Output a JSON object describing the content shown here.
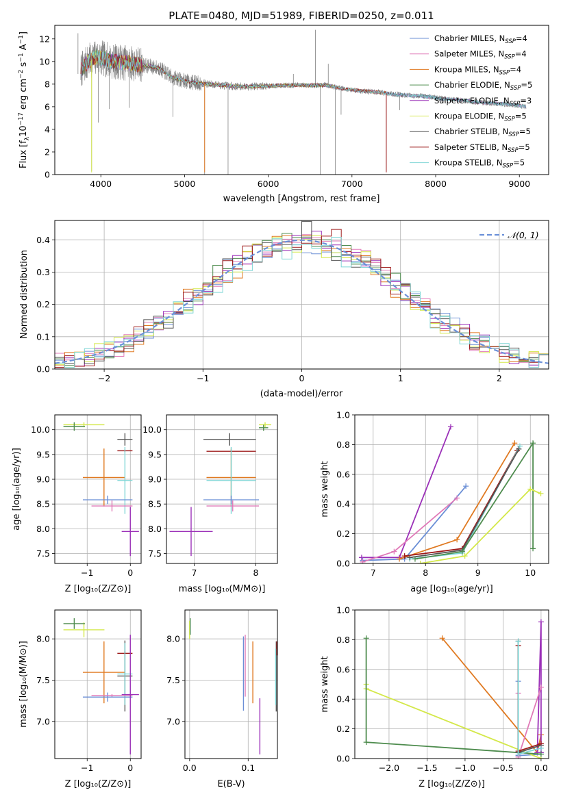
{
  "colors": {
    "chabrier_miles": "#6b8fd6",
    "salpeter_miles": "#e07ab8",
    "kroupa_miles": "#e07a22",
    "chabrier_elodie": "#4e8c4e",
    "salpeter_elodie": "#9b30b8",
    "kroupa_elodie": "#d4e84a",
    "chabrier_stelib": "#555555",
    "salpeter_stelib": "#9e1b1b",
    "kroupa_stelib": "#7fd6d6",
    "gaussian": "#6a8fd8",
    "spectrum": "#808080"
  },
  "chart_data": [
    {
      "id": "spectrum",
      "type": "line",
      "title": "PLATE=0480, MJD=51989, FIBERID=0250, z=0.011",
      "xlabel": "wavelength [Angstrom, rest frame]",
      "ylabel": "Flux [f$_\\lambda$10$^{-17}$ erg cm$^{-2}$ s$^{-1}$ A$^{-1}$]",
      "ylabel_parts": [
        "Flux [",
        "f",
        "λ",
        "10",
        "−17",
        " erg cm",
        "−2",
        " s",
        "−1",
        " A",
        "−1",
        "]"
      ],
      "xlim": [
        3450,
        9350
      ],
      "ylim": [
        0,
        13.2
      ],
      "xticks": [
        4000,
        5000,
        6000,
        7000,
        8000,
        9000
      ],
      "yticks": [
        0,
        2,
        4,
        6,
        8,
        10,
        12
      ],
      "grid": false,
      "legend_position": "top-right",
      "legend": [
        {
          "name": "Chabrier MILES, N",
          "sub": "SSP",
          "tail": "=4",
          "color_key": "chabrier_miles"
        },
        {
          "name": "Salpeter MILES, N",
          "sub": "SSP",
          "tail": "=4",
          "color_key": "salpeter_miles"
        },
        {
          "name": "Kroupa MILES, N",
          "sub": "SSP",
          "tail": "=4",
          "color_key": "kroupa_miles"
        },
        {
          "name": "Chabrier ELODIE, N",
          "sub": "SSP",
          "tail": "=5",
          "color_key": "chabrier_elodie"
        },
        {
          "name": "Salpeter ELODIE, N",
          "sub": "SSP",
          "tail": "=3",
          "color_key": "salpeter_elodie"
        },
        {
          "name": "Kroupa ELODIE, N",
          "sub": "SSP",
          "tail": "=5",
          "color_key": "kroupa_elodie"
        },
        {
          "name": "Chabrier STELIB, N",
          "sub": "SSP",
          "tail": "=5",
          "color_key": "chabrier_stelib"
        },
        {
          "name": "Salpeter STELIB, N",
          "sub": "SSP",
          "tail": "=5",
          "color_key": "salpeter_stelib"
        },
        {
          "name": "Kroupa STELIB, N",
          "sub": "SSP",
          "tail": "=5",
          "color_key": "kroupa_stelib"
        }
      ],
      "continuum": {
        "x": [
          3760,
          3850,
          3950,
          4050,
          4150,
          4300,
          4500,
          4700,
          4850,
          4950,
          5050,
          5300,
          5600,
          5900,
          6200,
          6500,
          6700,
          6900,
          7100,
          7300,
          7500,
          7700,
          7900,
          8100,
          8300,
          8500,
          8700,
          8900,
          9080
        ],
        "y": [
          9.2,
          10.0,
          10.4,
          10.2,
          10.0,
          9.9,
          9.7,
          9.4,
          8.6,
          8.4,
          8.2,
          8.0,
          7.8,
          7.8,
          7.9,
          7.9,
          7.9,
          7.6,
          7.4,
          7.3,
          7.1,
          7.0,
          6.9,
          6.7,
          6.6,
          6.4,
          6.3,
          6.2,
          6.0
        ]
      },
      "spikes": [
        {
          "x": 3727,
          "y": 12.5
        },
        {
          "x": 3890,
          "y": 0.3
        },
        {
          "x": 3970,
          "y": 4.6
        },
        {
          "x": 4102,
          "y": 5.8
        },
        {
          "x": 4340,
          "y": 5.9
        },
        {
          "x": 4861,
          "y": 5.1
        },
        {
          "x": 5240,
          "y": 0.0
        },
        {
          "x": 5520,
          "y": 0.0
        },
        {
          "x": 6300,
          "y": 8.9
        },
        {
          "x": 6563,
          "y": 12.8
        },
        {
          "x": 6620,
          "y": 0.0
        },
        {
          "x": 6717,
          "y": 9.8
        },
        {
          "x": 6800,
          "y": 0.0
        },
        {
          "x": 6870,
          "y": 5.3
        },
        {
          "x": 7410,
          "y": 0.3
        },
        {
          "x": 7570,
          "y": 5.7
        }
      ]
    },
    {
      "id": "residuals",
      "type": "line",
      "xlabel": "(data-model)/error",
      "ylabel": "Normed distribution",
      "xlim": [
        -2.5,
        2.5
      ],
      "ylim": [
        0,
        0.46
      ],
      "xticks": [
        -2,
        -1,
        0,
        1,
        2
      ],
      "yticks": [
        0.0,
        0.1,
        0.2,
        0.3,
        0.4
      ],
      "grid": true,
      "legend_position": "top-right",
      "legend": [
        {
          "name": "𝒩(0, 1)",
          "color_key": "gaussian",
          "dashed": true
        }
      ],
      "gaussian": {
        "mean": 0,
        "sigma": 1
      },
      "bins": {
        "start": -2.5,
        "width": 0.1
      }
    },
    {
      "id": "age_vs_Z",
      "type": "scatter",
      "xlabel": "Z [log₁₀(Z/Z⊙)]",
      "ylabel": "age  [log₁₀(age/yr)]",
      "xlim": [
        -1.75,
        0.25
      ],
      "ylim": [
        7.3,
        10.3
      ],
      "xticks": [
        -1,
        0
      ],
      "yticks": [
        7.5,
        8.0,
        8.5,
        9.0,
        9.5,
        10.0
      ],
      "grid": true,
      "crosses": [
        {
          "color_key": "kroupa_elodie",
          "x": [
            -1.55,
            -0.6
          ],
          "y": [
            10.05,
            10.15
          ]
        },
        {
          "color_key": "chabrier_elodie",
          "x": [
            -1.55,
            -1.05
          ],
          "y": [
            9.98,
            10.15
          ]
        },
        {
          "color_key": "kroupa_miles",
          "x": [
            -1.1,
            -0.12
          ],
          "y": [
            9.62,
            8.45
          ]
        },
        {
          "color_key": "chabrier_stelib",
          "x": [
            -0.3,
            0.05
          ],
          "y": [
            9.68,
            9.93
          ]
        },
        {
          "color_key": "salpeter_stelib",
          "x": [
            -0.3,
            0.05
          ],
          "y": [
            9.6,
            9.55
          ]
        },
        {
          "color_key": "kroupa_stelib",
          "x": [
            -0.3,
            0.05
          ],
          "y": [
            9.65,
            8.3
          ]
        },
        {
          "color_key": "chabrier_miles",
          "x": [
            -1.1,
            0.05
          ],
          "y": [
            8.67,
            8.5
          ]
        },
        {
          "color_key": "salpeter_miles",
          "x": [
            -0.9,
            0.05
          ],
          "y": [
            8.57,
            8.35
          ]
        },
        {
          "color_key": "salpeter_elodie",
          "x": [
            -0.2,
            0.2
          ],
          "y": [
            8.44,
            7.45
          ]
        }
      ]
    },
    {
      "id": "age_vs_mass",
      "type": "scatter",
      "xlabel": "mass [log₁₀(M/M⊙)]",
      "ylabel": "",
      "xlim": [
        6.55,
        8.35
      ],
      "ylim": [
        7.3,
        10.3
      ],
      "xticks": [
        7,
        8
      ],
      "yticks": [
        7.5,
        8.0,
        8.5,
        9.0,
        9.5,
        10.0
      ],
      "grid": true,
      "crosses": [
        {
          "color_key": "kroupa_elodie",
          "x": [
            8.05,
            8.25
          ],
          "y": [
            10.05,
            10.15
          ]
        },
        {
          "color_key": "chabrier_elodie",
          "x": [
            8.05,
            8.2
          ],
          "y": [
            9.98,
            10.1
          ]
        },
        {
          "color_key": "kroupa_miles",
          "x": [
            7.2,
            8.0
          ],
          "y": [
            9.62,
            8.45
          ]
        },
        {
          "color_key": "chabrier_stelib",
          "x": [
            7.15,
            8.0
          ],
          "y": [
            9.68,
            9.93
          ]
        },
        {
          "color_key": "salpeter_stelib",
          "x": [
            7.2,
            8.0
          ],
          "y": [
            9.58,
            9.55
          ]
        },
        {
          "color_key": "kroupa_stelib",
          "x": [
            7.2,
            8.0
          ],
          "y": [
            9.65,
            8.3
          ]
        },
        {
          "color_key": "chabrier_miles",
          "x": [
            7.15,
            8.05
          ],
          "y": [
            8.67,
            8.5
          ]
        },
        {
          "color_key": "salpeter_miles",
          "x": [
            7.2,
            8.05
          ],
          "y": [
            8.57,
            8.35
          ]
        },
        {
          "color_key": "salpeter_elodie",
          "x": [
            6.6,
            7.3
          ],
          "y": [
            8.44,
            7.45
          ]
        }
      ]
    },
    {
      "id": "mass_weight_vs_age",
      "type": "line",
      "xlabel": "age  [log₁₀(age/yr)]",
      "ylabel": "mass weight",
      "xlim": [
        6.65,
        10.35
      ],
      "ylim": [
        0,
        1.0
      ],
      "xticks": [
        7,
        8,
        9,
        10
      ],
      "yticks": [
        0.0,
        0.2,
        0.4,
        0.6,
        0.8,
        1.0
      ],
      "grid": true,
      "series": [
        {
          "color_key": "salpeter_elodie",
          "x": [
            6.78,
            7.5,
            8.48
          ],
          "y": [
            0.04,
            0.04,
            0.92
          ]
        },
        {
          "color_key": "chabrier_miles",
          "x": [
            6.8,
            7.6,
            8.77
          ],
          "y": [
            0.02,
            0.03,
            0.52
          ]
        },
        {
          "color_key": "salpeter_miles",
          "x": [
            6.8,
            7.4,
            8.6
          ],
          "y": [
            0.01,
            0.08,
            0.44
          ]
        },
        {
          "color_key": "kroupa_miles",
          "x": [
            7.5,
            8.6,
            9.7
          ],
          "y": [
            0.03,
            0.16,
            0.81
          ]
        },
        {
          "color_key": "salpeter_stelib",
          "x": [
            7.6,
            8.7,
            9.75
          ],
          "y": [
            0.05,
            0.1,
            0.76
          ]
        },
        {
          "color_key": "kroupa_stelib",
          "x": [
            7.7,
            8.7,
            9.8
          ],
          "y": [
            0.03,
            0.07,
            0.79
          ]
        },
        {
          "color_key": "chabrier_stelib",
          "x": [
            7.7,
            8.7,
            9.78
          ],
          "y": [
            0.04,
            0.09,
            0.77
          ]
        },
        {
          "color_key": "chabrier_elodie",
          "x": [
            7.8,
            8.7,
            10.05,
            10.05
          ],
          "y": [
            0.03,
            0.08,
            0.81,
            0.1
          ]
        },
        {
          "color_key": "kroupa_elodie",
          "x": [
            7.9,
            8.75,
            10.0,
            10.2
          ],
          "y": [
            0.0,
            0.05,
            0.5,
            0.47
          ]
        }
      ]
    },
    {
      "id": "mass_vs_Z",
      "type": "scatter",
      "xlabel": "Z [log₁₀(Z/Z⊙)]",
      "ylabel": "mass [log₁₀(M/M⊙)]",
      "xlim": [
        -1.75,
        0.25
      ],
      "ylim": [
        6.55,
        8.35
      ],
      "xticks": [
        -1,
        0
      ],
      "yticks": [
        7.0,
        7.5,
        8.0
      ],
      "grid": true,
      "crosses": [
        {
          "color_key": "kroupa_elodie",
          "x": [
            -1.55,
            -0.6
          ],
          "y": [
            8.02,
            8.2
          ]
        },
        {
          "color_key": "chabrier_elodie",
          "x": [
            -1.55,
            -1.05
          ],
          "y": [
            8.12,
            8.25
          ]
        },
        {
          "color_key": "kroupa_miles",
          "x": [
            -1.1,
            -0.12
          ],
          "y": [
            7.22,
            7.97
          ]
        },
        {
          "color_key": "chabrier_stelib",
          "x": [
            -0.3,
            0.05
          ],
          "y": [
            7.12,
            7.98
          ]
        },
        {
          "color_key": "salpeter_stelib",
          "x": [
            -0.3,
            0.05
          ],
          "y": [
            7.8,
            7.85
          ]
        },
        {
          "color_key": "kroupa_stelib",
          "x": [
            -0.3,
            0.05
          ],
          "y": [
            7.2,
            7.95
          ]
        },
        {
          "color_key": "chabrier_miles",
          "x": [
            -1.1,
            0.05
          ],
          "y": [
            7.24,
            7.35
          ]
        },
        {
          "color_key": "salpeter_miles",
          "x": [
            -0.9,
            0.05
          ],
          "y": [
            7.33,
            7.3
          ]
        },
        {
          "color_key": "salpeter_elodie",
          "x": [
            -0.2,
            0.2
          ],
          "y": [
            6.6,
            8.05
          ]
        }
      ]
    },
    {
      "id": "mass_vs_ebv",
      "type": "scatter",
      "xlabel": "E(B-V)",
      "ylabel": "",
      "xlim": [
        -0.008,
        0.15
      ],
      "ylim": [
        6.55,
        8.35
      ],
      "xticks": [
        0.0,
        0.1
      ],
      "yticks": [
        7.0,
        7.5,
        8.0
      ],
      "grid": true,
      "vlines": [
        {
          "color_key": "kroupa_elodie",
          "x": 0.0,
          "y": [
            8.0,
            8.22
          ]
        },
        {
          "color_key": "chabrier_elodie",
          "x": 0.001,
          "y": [
            8.05,
            8.25
          ]
        },
        {
          "color_key": "chabrier_miles",
          "x": 0.092,
          "y": [
            7.13,
            8.03
          ]
        },
        {
          "color_key": "salpeter_miles",
          "x": 0.095,
          "y": [
            7.3,
            8.05
          ]
        },
        {
          "color_key": "kroupa_miles",
          "x": 0.108,
          "y": [
            7.22,
            7.97
          ]
        },
        {
          "color_key": "salpeter_elodie",
          "x": 0.12,
          "y": [
            6.6,
            7.28
          ]
        },
        {
          "color_key": "chabrier_stelib",
          "x": 0.148,
          "y": [
            7.12,
            7.97
          ]
        },
        {
          "color_key": "salpeter_stelib",
          "x": 0.149,
          "y": [
            7.8,
            7.97
          ]
        },
        {
          "color_key": "kroupa_stelib",
          "x": 0.147,
          "y": [
            7.2,
            7.88
          ]
        }
      ]
    },
    {
      "id": "mass_weight_vs_Z",
      "type": "line",
      "xlabel": "Z [log₁₀(Z/Z⊙)]",
      "ylabel": "mass weight",
      "xlim": [
        -2.45,
        0.1
      ],
      "ylim": [
        0,
        1.0
      ],
      "xticks": [
        -2.0,
        -1.5,
        -1.0,
        -0.5,
        0.0
      ],
      "yticks": [
        0.0,
        0.2,
        0.4,
        0.6,
        0.8,
        1.0
      ],
      "grid": true,
      "series": [
        {
          "color_key": "kroupa_miles",
          "x": [
            -1.3,
            -0.05,
            0.0
          ],
          "y": [
            0.81,
            0.04,
            0.16
          ]
        },
        {
          "color_key": "salpeter_elodie",
          "x": [
            -0.05,
            0.0,
            0.0
          ],
          "y": [
            0.04,
            0.92,
            0.04
          ]
        },
        {
          "color_key": "chabrier_miles",
          "x": [
            -0.3,
            -0.3,
            0.0
          ],
          "y": [
            0.52,
            0.02,
            0.03
          ]
        },
        {
          "color_key": "salpeter_miles",
          "x": [
            -0.3,
            -0.3,
            0.0
          ],
          "y": [
            0.44,
            0.01,
            0.48
          ]
        },
        {
          "color_key": "kroupa_elodie",
          "x": [
            -2.3,
            -2.3,
            0.0
          ],
          "y": [
            0.5,
            0.47,
            0.0
          ]
        },
        {
          "color_key": "chabrier_elodie",
          "x": [
            -2.3,
            -2.3,
            0.0
          ],
          "y": [
            0.81,
            0.11,
            0.03
          ]
        },
        {
          "color_key": "chabrier_stelib",
          "x": [
            -0.3,
            -0.3,
            0.0
          ],
          "y": [
            0.79,
            0.04,
            0.09
          ]
        },
        {
          "color_key": "salpeter_stelib",
          "x": [
            -0.3,
            -0.3,
            0.0
          ],
          "y": [
            0.76,
            0.05,
            0.1
          ]
        },
        {
          "color_key": "kroupa_stelib",
          "x": [
            -0.3,
            -0.3,
            0.0
          ],
          "y": [
            0.79,
            0.03,
            0.07
          ]
        }
      ]
    }
  ]
}
